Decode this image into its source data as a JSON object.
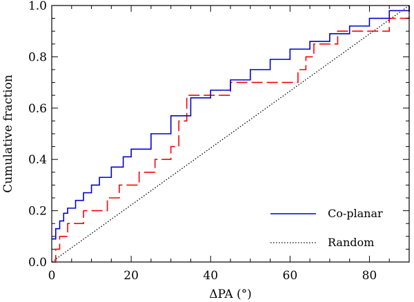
{
  "chart_data": {
    "type": "line",
    "title": "",
    "xlabel": "ΔPA (°)",
    "ylabel": "Cumulative fraction",
    "xlim": [
      0,
      90
    ],
    "ylim": [
      0,
      1.0
    ],
    "x_ticks": [
      0,
      20,
      40,
      60,
      80
    ],
    "x_tick_labels": [
      "0",
      "20",
      "40",
      "60",
      "80"
    ],
    "y_ticks": [
      0.0,
      0.2,
      0.4,
      0.6,
      0.8,
      1.0
    ],
    "y_tick_labels": [
      "0.0",
      "0.2",
      "0.4",
      "0.6",
      "0.8",
      "1.0"
    ],
    "grid": false,
    "legend_position": "bottom-right",
    "series": [
      {
        "name": "Co-planar",
        "style": "solid-step",
        "color": "#0000cc",
        "x": [
          0,
          1,
          2,
          3,
          4,
          6,
          8,
          10,
          12,
          15,
          18,
          20,
          25,
          30,
          35,
          40,
          45,
          50,
          55,
          60,
          65,
          70,
          75,
          80,
          85,
          90
        ],
        "y": [
          0.09,
          0.13,
          0.16,
          0.19,
          0.21,
          0.24,
          0.27,
          0.3,
          0.33,
          0.37,
          0.41,
          0.44,
          0.5,
          0.57,
          0.64,
          0.67,
          0.71,
          0.75,
          0.79,
          0.83,
          0.86,
          0.89,
          0.92,
          0.95,
          0.98,
          1.0
        ]
      },
      {
        "name": "Random",
        "style": "dotted",
        "color": "#000000",
        "x": [
          0,
          90
        ],
        "y": [
          0.0,
          1.0
        ]
      },
      {
        "name": "",
        "style": "dashed-step",
        "color": "#ff0000",
        "x": [
          0,
          1,
          2,
          4,
          8,
          14,
          17,
          22,
          26,
          30,
          32,
          34,
          45,
          62,
          64,
          66,
          72,
          85,
          90
        ],
        "y": [
          0.0,
          0.05,
          0.1,
          0.15,
          0.2,
          0.25,
          0.3,
          0.35,
          0.4,
          0.45,
          0.55,
          0.65,
          0.7,
          0.75,
          0.8,
          0.85,
          0.9,
          0.95,
          1.0
        ]
      }
    ],
    "legend": [
      {
        "label": "Co-planar",
        "style": "solid",
        "color": "#0000cc"
      },
      {
        "label": "Random",
        "style": "dotted",
        "color": "#000000"
      }
    ]
  }
}
